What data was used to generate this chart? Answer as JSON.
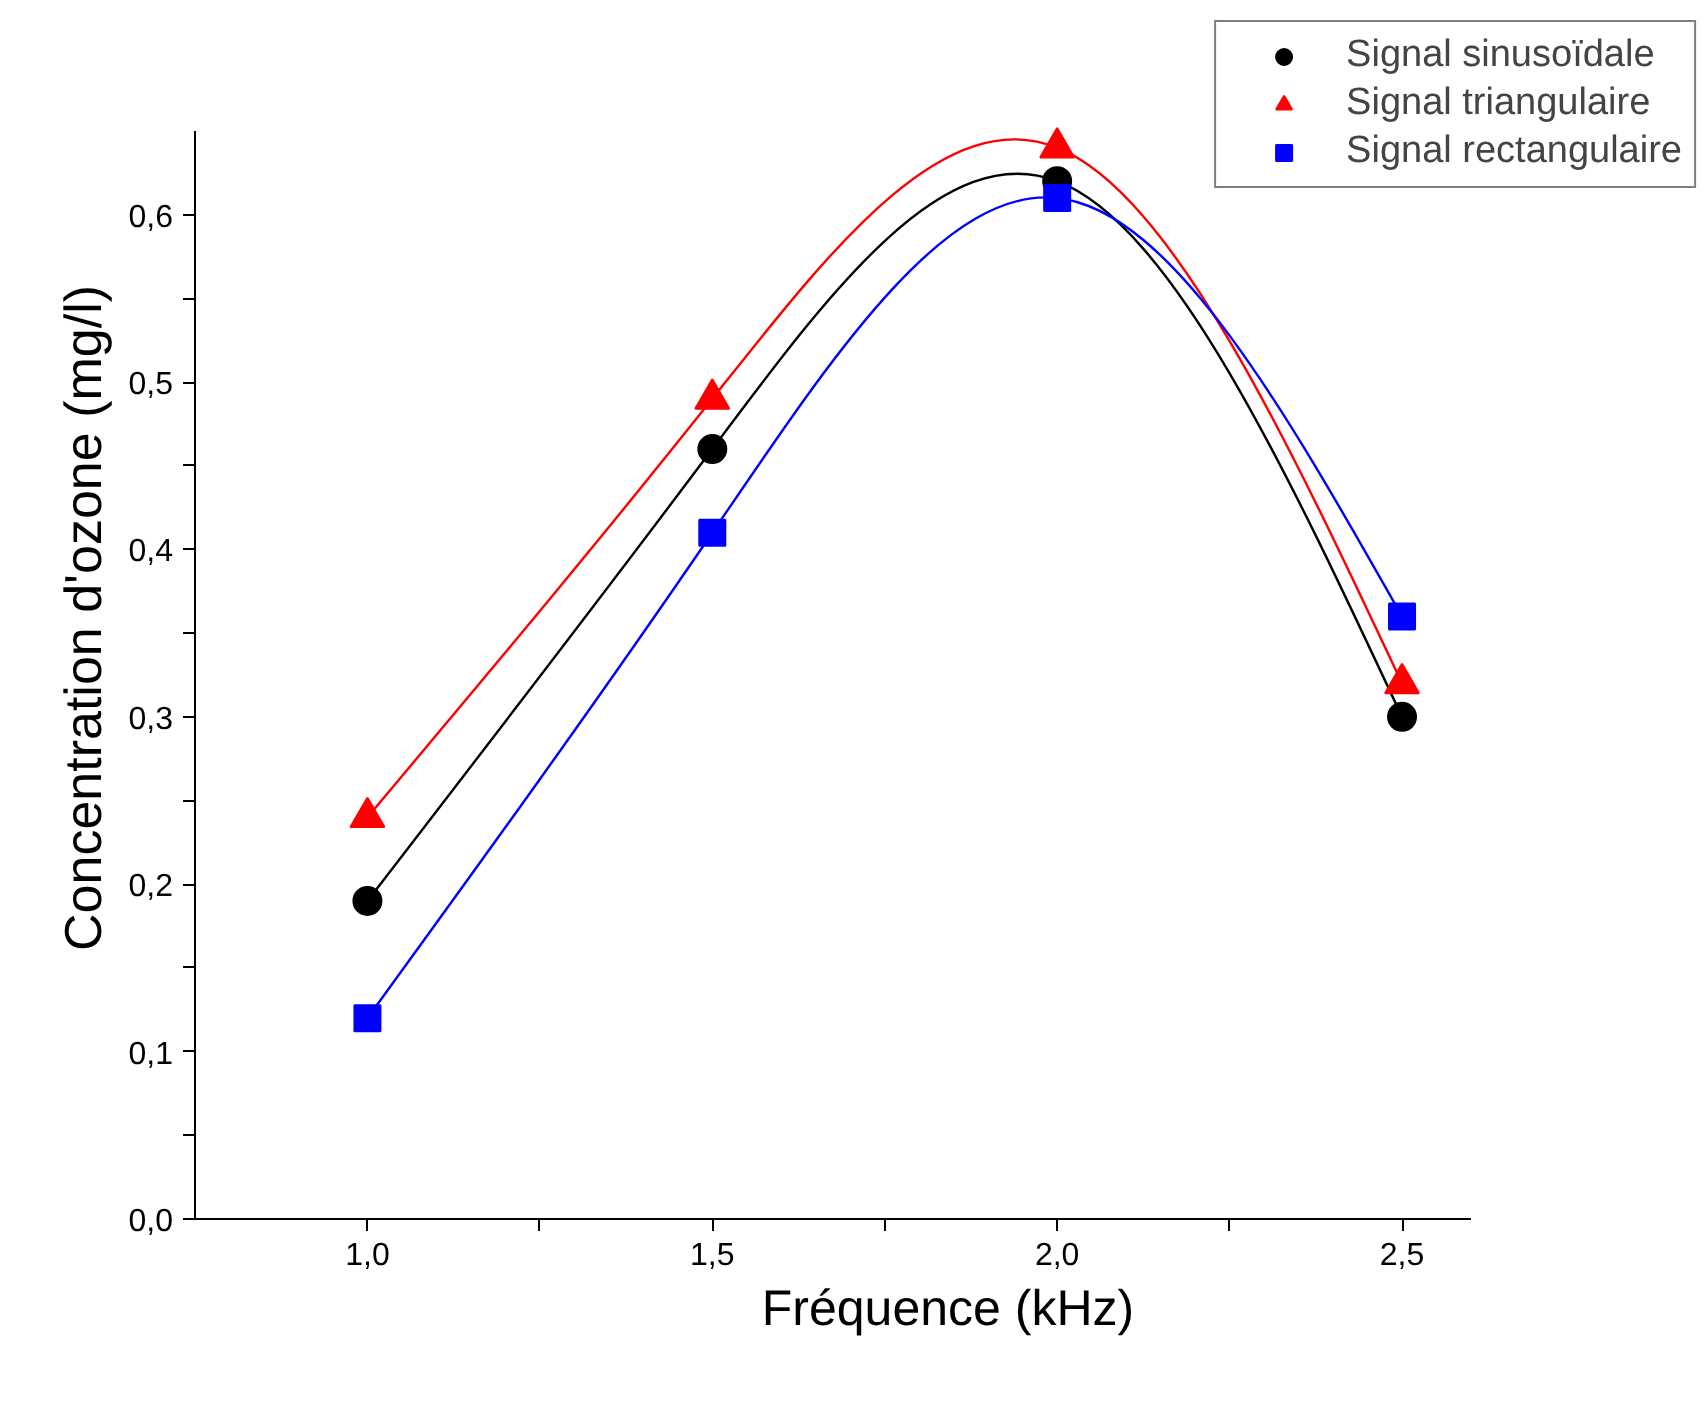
{
  "chart_data": {
    "type": "line",
    "xlabel": "Fréquence (kHz)",
    "ylabel": "Concentration d'ozone (mg/l)",
    "x": [
      1.0,
      1.5,
      2.0,
      2.5
    ],
    "series": [
      {
        "name": "Signal sinusoïdale",
        "color": "#000000",
        "marker": "circle",
        "values": [
          0.19,
          0.46,
          0.62,
          0.3
        ]
      },
      {
        "name": "Signal triangulaire",
        "color": "#ff0000",
        "marker": "triangle",
        "values": [
          0.24,
          0.49,
          0.64,
          0.32
        ]
      },
      {
        "name": "Signal rectangulaire",
        "color": "#0000ff",
        "marker": "square",
        "values": [
          0.12,
          0.41,
          0.61,
          0.36
        ]
      }
    ],
    "xlim": [
      0.75,
      2.6
    ],
    "ylim": [
      0,
      0.65
    ],
    "xticks": [
      {
        "value": 1.0,
        "label": "1,0"
      },
      {
        "value": 1.25,
        "label": null
      },
      {
        "value": 1.5,
        "label": "1,5"
      },
      {
        "value": 1.75,
        "label": null
      },
      {
        "value": 2.0,
        "label": "2,0"
      },
      {
        "value": 2.25,
        "label": null
      },
      {
        "value": 2.5,
        "label": "2,5"
      }
    ],
    "yticks": [
      {
        "value": 0.0,
        "label": "0,0"
      },
      {
        "value": 0.05,
        "label": null
      },
      {
        "value": 0.1,
        "label": "0,1"
      },
      {
        "value": 0.15,
        "label": null
      },
      {
        "value": 0.2,
        "label": "0,2"
      },
      {
        "value": 0.25,
        "label": null
      },
      {
        "value": 0.3,
        "label": "0,3"
      },
      {
        "value": 0.35,
        "label": null
      },
      {
        "value": 0.4,
        "label": "0,4"
      },
      {
        "value": 0.45,
        "label": null
      },
      {
        "value": 0.5,
        "label": "0,5"
      },
      {
        "value": 0.55,
        "label": null
      },
      {
        "value": 0.6,
        "label": "0,6"
      }
    ],
    "grid": false,
    "legend": "top right",
    "line_style": "solid"
  }
}
